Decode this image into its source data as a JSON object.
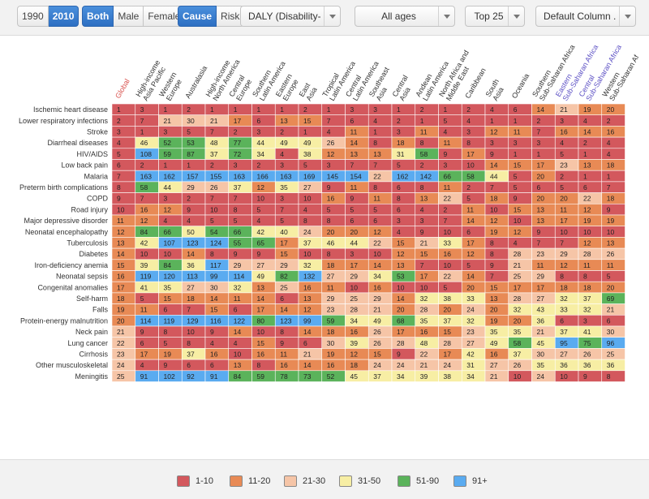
{
  "toolbar": {
    "year_options": [
      "1990",
      "2010"
    ],
    "gender_options": [
      "Both",
      "Male",
      "Female"
    ],
    "view_options": [
      "Cause",
      "Risk"
    ],
    "metric": "DALY (Disability-...",
    "age": "All ages",
    "top": "Top 25",
    "column_order": "Default Column ..."
  },
  "colors": {
    "1-10": "#d3585d",
    "11-20": "#e88a55",
    "21-30": "#f6c5a7",
    "31-50": "#f7eea4",
    "51-90": "#5bb35b",
    "91+": "#5aabf0"
  },
  "legend": [
    {
      "label": "1-10",
      "color": "#d3585d"
    },
    {
      "label": "11-20",
      "color": "#e88a55"
    },
    {
      "label": "21-30",
      "color": "#f6c5a7"
    },
    {
      "label": "31-50",
      "color": "#f7eea4"
    },
    {
      "label": "51-90",
      "color": "#5bb35b"
    },
    {
      "label": "91+",
      "color": "#5aabf0"
    }
  ],
  "chart_data": {
    "type": "heatmap",
    "columns": [
      [
        "Global"
      ],
      [
        "High-income",
        "Asia Pacific"
      ],
      [
        "Western",
        "Europe"
      ],
      [
        "Australasia"
      ],
      [
        "High-income",
        "North America"
      ],
      [
        "Central",
        "Europe"
      ],
      [
        "Southern",
        "Latin America"
      ],
      [
        "Eastern",
        "Europe"
      ],
      [
        "East",
        "Asia"
      ],
      [
        "Tropical",
        "Latin America"
      ],
      [
        "Central",
        "Latin America"
      ],
      [
        "Southeast",
        "Asia"
      ],
      [
        "Central",
        "Asia"
      ],
      [
        "Andean",
        "Latin America"
      ],
      [
        "North Africa and",
        "Middle East"
      ],
      [
        "Caribbean"
      ],
      [
        "South",
        "Asia"
      ],
      [
        "Oceania"
      ],
      [
        "Southern",
        "Sub-Saharan Africa"
      ],
      [
        "Eastern",
        "Sub-Saharan Africa"
      ],
      [
        "Central",
        "Sub-Saharan Africa"
      ],
      [
        "Western",
        "Sub-Saharan Af"
      ]
    ],
    "rows": [
      {
        "cause": "Ischemic heart disease",
        "values": [
          1,
          3,
          1,
          2,
          1,
          1,
          1,
          1,
          2,
          1,
          3,
          3,
          1,
          2,
          1,
          2,
          4,
          6,
          14,
          21,
          19,
          20
        ]
      },
      {
        "cause": "Lower respiratory infections",
        "values": [
          2,
          7,
          21,
          30,
          21,
          17,
          6,
          13,
          15,
          7,
          6,
          4,
          2,
          1,
          5,
          4,
          1,
          1,
          2,
          3,
          4,
          2
        ]
      },
      {
        "cause": "Stroke",
        "values": [
          3,
          1,
          3,
          5,
          7,
          2,
          3,
          2,
          1,
          4,
          11,
          1,
          3,
          11,
          4,
          3,
          12,
          11,
          7,
          16,
          14,
          16
        ]
      },
      {
        "cause": "Diarrheal diseases",
        "values": [
          4,
          46,
          52,
          53,
          48,
          77,
          44,
          49,
          49,
          26,
          14,
          8,
          18,
          8,
          11,
          8,
          3,
          3,
          3,
          4,
          2,
          4
        ]
      },
      {
        "cause": "HIV/AIDS",
        "values": [
          5,
          108,
          59,
          87,
          37,
          72,
          34,
          4,
          38,
          12,
          13,
          13,
          31,
          58,
          9,
          17,
          9,
          1,
          1,
          5,
          1,
          4
        ]
      },
      {
        "cause": "Low back pain",
        "values": [
          6,
          2,
          1,
          1,
          2,
          3,
          2,
          3,
          5,
          3,
          7,
          7,
          5,
          2,
          3,
          10,
          14,
          15,
          17,
          23,
          13,
          18
        ]
      },
      {
        "cause": "Malaria",
        "values": [
          7,
          163,
          162,
          157,
          155,
          163,
          166,
          163,
          169,
          145,
          154,
          22,
          162,
          142,
          66,
          58,
          44,
          5,
          20,
          2,
          1,
          1
        ]
      },
      {
        "cause": "Preterm birth complications",
        "values": [
          8,
          58,
          44,
          29,
          26,
          37,
          12,
          35,
          27,
          9,
          11,
          8,
          6,
          8,
          11,
          2,
          7,
          5,
          6,
          5,
          6,
          7
        ]
      },
      {
        "cause": "COPD",
        "values": [
          9,
          7,
          3,
          2,
          7,
          7,
          10,
          3,
          10,
          16,
          9,
          11,
          8,
          13,
          22,
          5,
          18,
          9,
          20,
          20,
          22,
          18
        ]
      },
      {
        "cause": "Road injury",
        "values": [
          10,
          16,
          12,
          9,
          10,
          8,
          5,
          7,
          4,
          5,
          5,
          5,
          6,
          4,
          2,
          11,
          10,
          15,
          13,
          11,
          12,
          9
        ]
      },
      {
        "cause": "Major depressive disorder",
        "values": [
          11,
          12,
          4,
          4,
          5,
          5,
          4,
          5,
          8,
          8,
          6,
          6,
          3,
          3,
          7,
          14,
          12,
          10,
          13,
          17,
          19,
          19
        ]
      },
      {
        "cause": "Neonatal encephalopathy",
        "values": [
          12,
          84,
          66,
          50,
          54,
          66,
          42,
          40,
          24,
          20,
          20,
          12,
          4,
          9,
          10,
          6,
          19,
          12,
          9,
          10,
          10,
          10
        ]
      },
      {
        "cause": "Tuberculosis",
        "values": [
          13,
          42,
          107,
          123,
          124,
          55,
          65,
          17,
          37,
          46,
          44,
          22,
          15,
          21,
          33,
          17,
          8,
          4,
          7,
          7,
          12,
          13
        ]
      },
      {
        "cause": "Diabetes",
        "values": [
          14,
          10,
          10,
          14,
          8,
          9,
          9,
          15,
          10,
          8,
          3,
          10,
          12,
          15,
          16,
          12,
          8,
          28,
          23,
          29,
          28,
          26
        ]
      },
      {
        "cause": "Iron-deficiency anemia",
        "values": [
          15,
          39,
          84,
          36,
          117,
          29,
          27,
          29,
          32,
          18,
          17,
          14,
          13,
          7,
          10,
          5,
          9,
          21,
          11,
          12,
          11,
          11
        ]
      },
      {
        "cause": "Neonatal sepsis",
        "values": [
          16,
          119,
          120,
          113,
          99,
          114,
          49,
          82,
          132,
          27,
          29,
          34,
          53,
          17,
          22,
          14,
          7,
          25,
          29,
          8,
          8,
          5
        ]
      },
      {
        "cause": "Congenital anomalies",
        "values": [
          17,
          41,
          35,
          27,
          30,
          32,
          13,
          25,
          16,
          11,
          10,
          16,
          10,
          10,
          5,
          20,
          15,
          17,
          17,
          18,
          18,
          20
        ]
      },
      {
        "cause": "Self-harm",
        "values": [
          18,
          5,
          15,
          18,
          14,
          11,
          14,
          6,
          13,
          29,
          25,
          29,
          14,
          32,
          38,
          33,
          13,
          28,
          27,
          32,
          37,
          69
        ]
      },
      {
        "cause": "Falls",
        "values": [
          19,
          11,
          6,
          7,
          15,
          6,
          17,
          14,
          12,
          23,
          28,
          21,
          20,
          28,
          20,
          24,
          20,
          32,
          43,
          33,
          32,
          21
        ]
      },
      {
        "cause": "Protein-energy malnutrition",
        "values": [
          20,
          114,
          119,
          129,
          116,
          122,
          80,
          123,
          99,
          59,
          34,
          49,
          68,
          35,
          37,
          32,
          19,
          20,
          36,
          6,
          3,
          6
        ]
      },
      {
        "cause": "Neck pain",
        "values": [
          21,
          9,
          8,
          10,
          9,
          14,
          10,
          8,
          14,
          18,
          16,
          26,
          17,
          16,
          15,
          23,
          35,
          35,
          21,
          37,
          41,
          30
        ]
      },
      {
        "cause": "Lung cancer",
        "values": [
          22,
          6,
          5,
          8,
          4,
          4,
          15,
          9,
          6,
          30,
          39,
          26,
          28,
          48,
          28,
          27,
          49,
          58,
          45,
          95,
          75,
          96
        ]
      },
      {
        "cause": "Cirrhosis",
        "values": [
          23,
          17,
          19,
          37,
          16,
          10,
          16,
          11,
          21,
          19,
          12,
          15,
          9,
          22,
          17,
          42,
          16,
          37,
          30,
          27,
          26,
          25
        ]
      },
      {
        "cause": "Other musculoskeletal",
        "values": [
          24,
          4,
          9,
          6,
          6,
          13,
          8,
          16,
          14,
          16,
          18,
          24,
          24,
          21,
          24,
          31,
          27,
          26,
          35,
          36,
          36,
          36
        ]
      },
      {
        "cause": "Meningitis",
        "values": [
          25,
          91,
          102,
          92,
          91,
          84,
          59,
          78,
          73,
          52,
          45,
          37,
          34,
          39,
          38,
          34,
          21,
          10,
          24,
          10,
          9,
          8
        ]
      }
    ]
  }
}
